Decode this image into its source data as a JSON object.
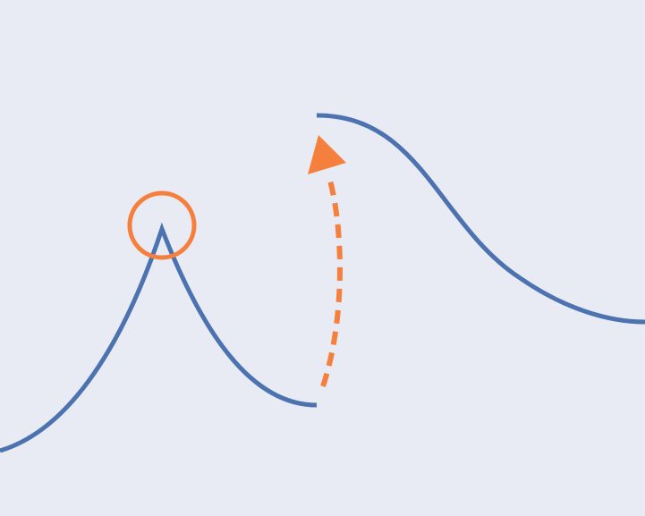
{
  "colors": {
    "background": "#E8EBF3",
    "curve": "#4C72B0",
    "accent": "#F5803E"
  },
  "diagram": {
    "elements": [
      "left-peak-curve",
      "peak-highlight-circle",
      "jump-arrow",
      "right-smooth-curve"
    ]
  }
}
